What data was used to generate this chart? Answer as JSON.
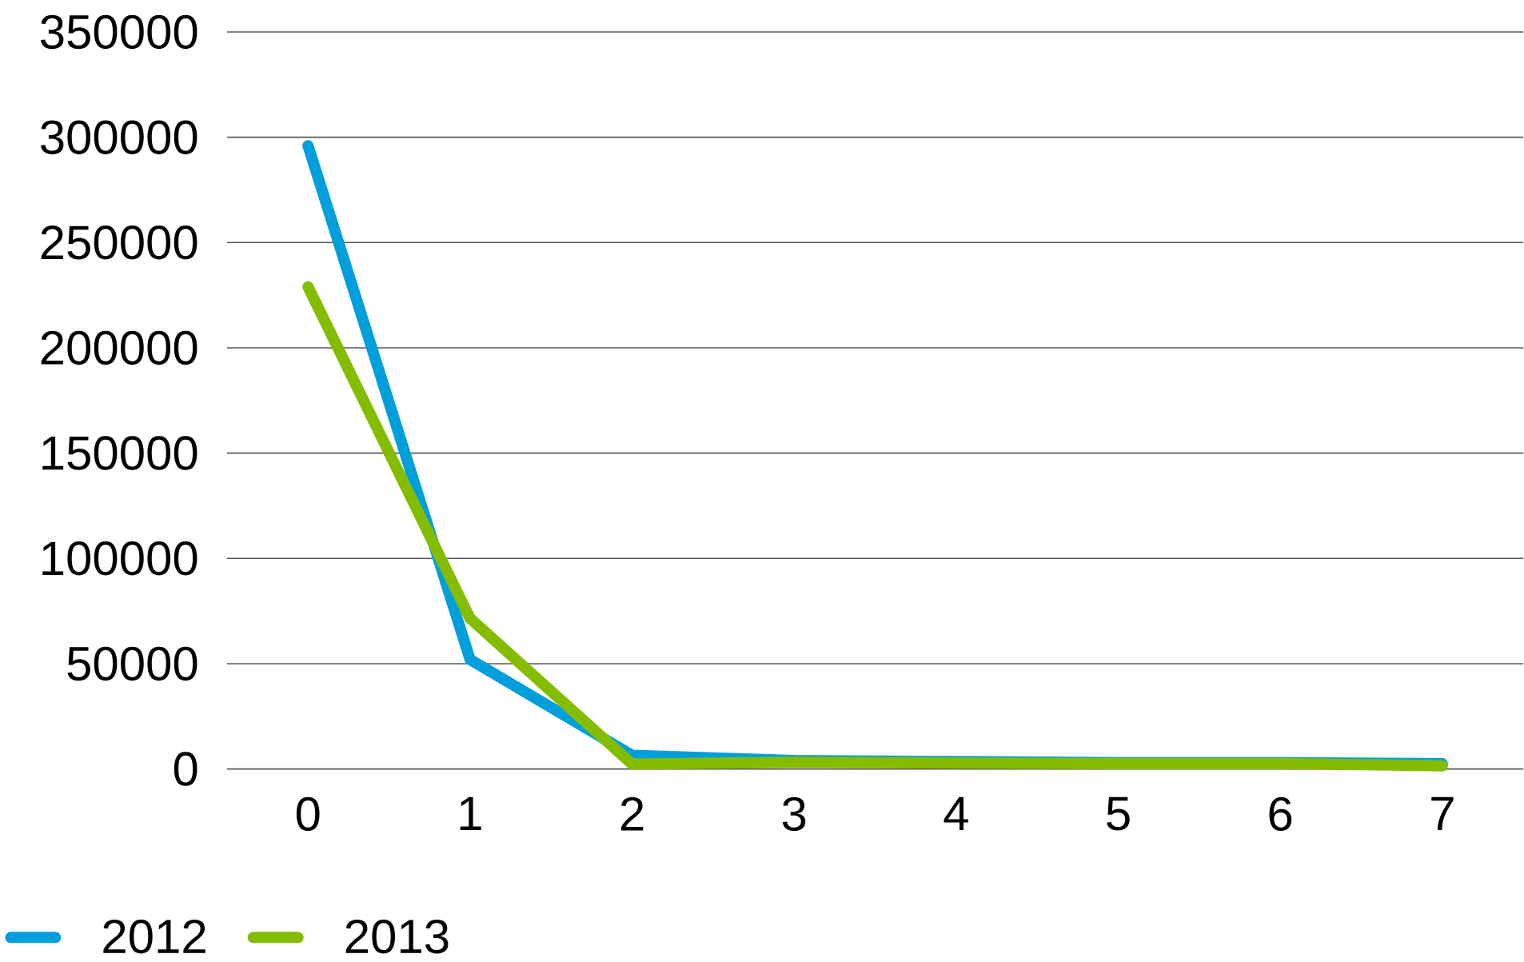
{
  "chart_data": {
    "type": "line",
    "categories": [
      "0",
      "1",
      "2",
      "3",
      "4",
      "5",
      "6",
      "7"
    ],
    "series": [
      {
        "name": "2012",
        "color": "#009fdb",
        "values": [
          296000,
          52000,
          6500,
          4000,
          3500,
          3000,
          3000,
          2500
        ]
      },
      {
        "name": "2013",
        "color": "#84bd00",
        "values": [
          229000,
          71500,
          2300,
          3200,
          2800,
          2500,
          2500,
          1500
        ]
      }
    ],
    "ylim": [
      0,
      350000
    ],
    "yticks": [
      0,
      50000,
      100000,
      150000,
      200000,
      250000,
      300000,
      350000
    ],
    "grid": "y",
    "legend": "bottom left"
  }
}
